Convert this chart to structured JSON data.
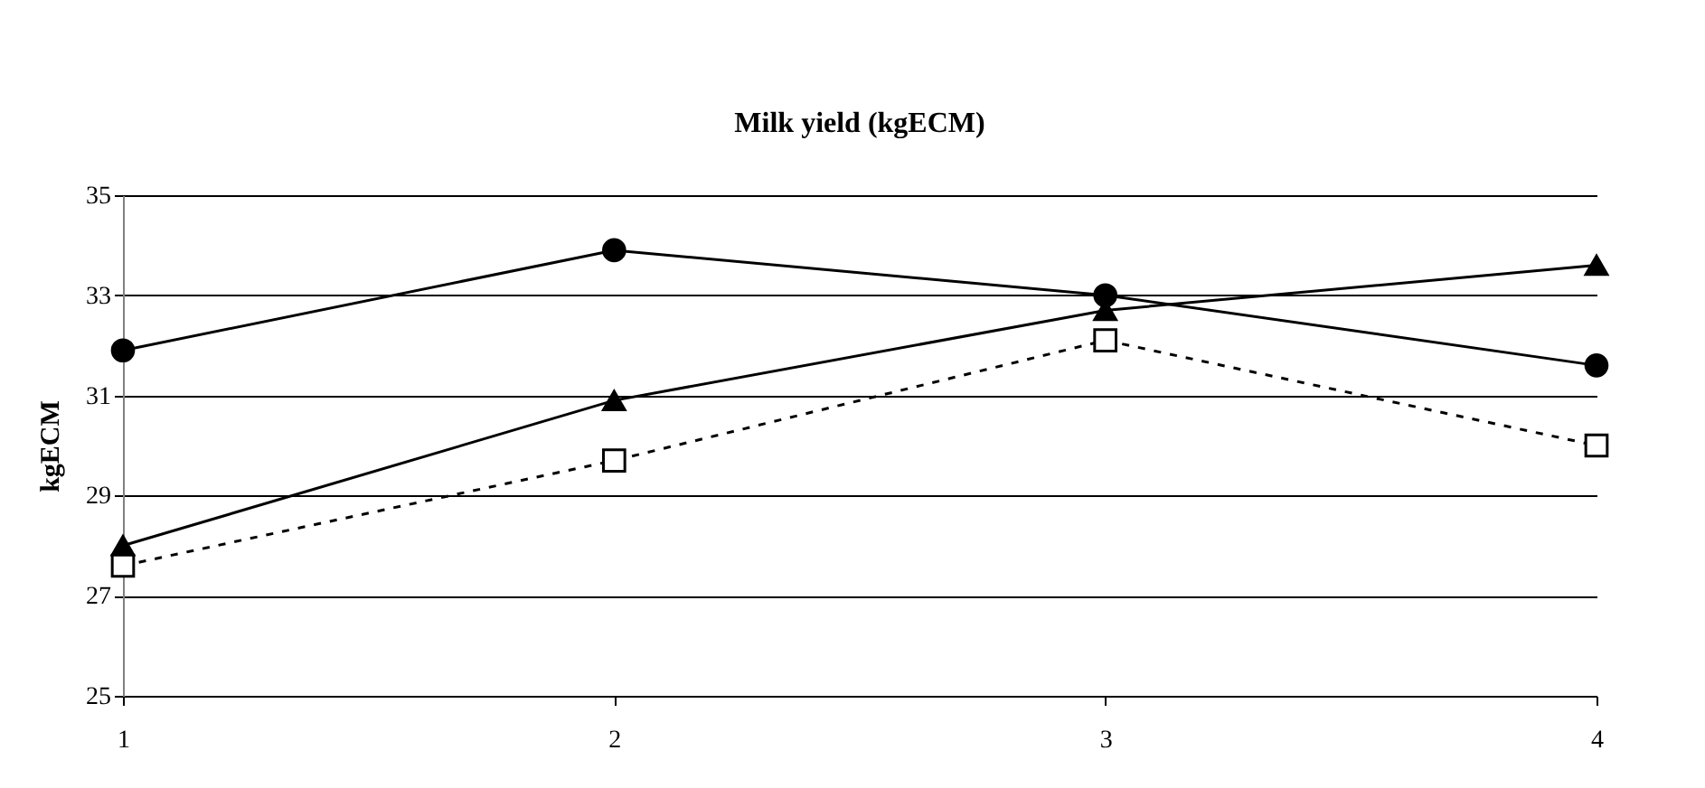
{
  "chart_data": {
    "type": "line",
    "title": "Milk yield (kgECM)",
    "ylabel": "kgECM",
    "categories": [
      "1",
      "2",
      "3",
      "4"
    ],
    "series": [
      {
        "color": "#000000",
        "marker": "circle",
        "line_style": "solid",
        "values": [
          31.9,
          33.9,
          33.0,
          31.6
        ]
      },
      {
        "color": "#000000",
        "marker": "triangle",
        "line_style": "solid",
        "values": [
          28.0,
          30.9,
          32.7,
          33.6
        ]
      },
      {
        "color": "#000000",
        "marker": "square",
        "line_style": "dashed",
        "values": [
          27.6,
          29.7,
          32.1,
          30.0
        ]
      }
    ],
    "ylim": [
      25,
      35
    ],
    "yticks": [
      25,
      27,
      29,
      31,
      33,
      35
    ],
    "grid": "y"
  }
}
